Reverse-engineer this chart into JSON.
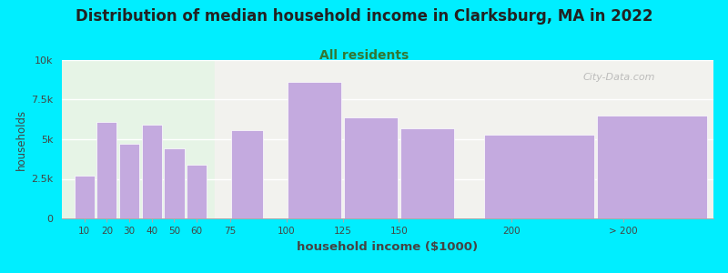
{
  "title": "Distribution of median household income in Clarksburg, MA in 2022",
  "subtitle": "All residents",
  "xlabel": "household income ($1000)",
  "ylabel": "households",
  "bar_color": "#c4aadf",
  "background_outer": "#00eeff",
  "background_inner_left": "#e6f4e6",
  "background_inner_right": "#f2f2ee",
  "title_fontsize": 12,
  "title_color": "#222222",
  "subtitle_fontsize": 10,
  "subtitle_color": "#337733",
  "watermark": "City-Data.com",
  "categories": [
    "10",
    "20",
    "30",
    "40",
    "50",
    "60",
    "75",
    "100",
    "125",
    "150",
    "200",
    "> 200"
  ],
  "values": [
    2700,
    6100,
    4700,
    5900,
    4400,
    3400,
    5600,
    8600,
    6400,
    5700,
    5300,
    6500
  ],
  "bar_centers": [
    10,
    20,
    30,
    40,
    50,
    60,
    82.5,
    112.5,
    137.5,
    162.5,
    212.5,
    262.5
  ],
  "bar_widths": [
    9,
    9,
    9,
    9,
    9,
    9,
    14,
    24,
    24,
    24,
    49,
    49
  ],
  "xtick_positions": [
    10,
    20,
    30,
    40,
    50,
    60,
    75,
    100,
    125,
    150,
    200,
    250
  ],
  "xtick_labels": [
    "10",
    "20",
    "30",
    "40",
    "50",
    "60",
    "75",
    "100",
    "125",
    "150",
    "200",
    "> 200"
  ],
  "ylim": [
    0,
    10000
  ],
  "yticks": [
    0,
    2500,
    5000,
    7500,
    10000
  ],
  "ytick_labels": [
    "0",
    "2.5k",
    "5k",
    "7.5k",
    "10k"
  ],
  "xlim": [
    0,
    290
  ],
  "green_boundary": 68
}
